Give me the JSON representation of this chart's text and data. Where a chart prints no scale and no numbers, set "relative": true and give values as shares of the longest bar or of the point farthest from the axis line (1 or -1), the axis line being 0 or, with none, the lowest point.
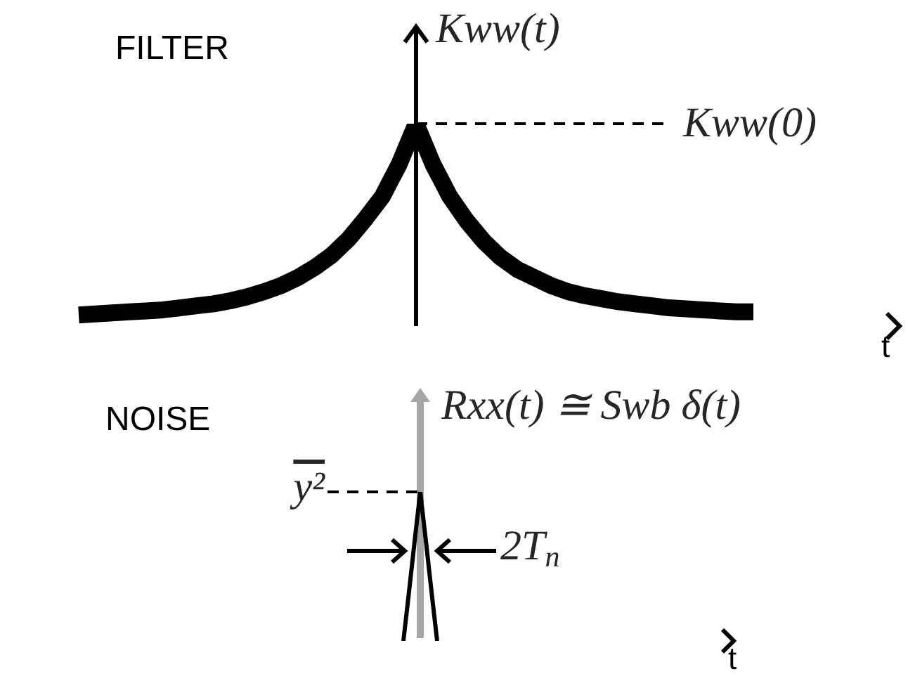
{
  "chart_data": [
    {
      "type": "line",
      "title": "FILTER",
      "xlabel": "t",
      "ylabel": "Kww(t)",
      "relative": true,
      "marker": "none",
      "categories": [
        null,
        null,
        null,
        null,
        null,
        null,
        null,
        null,
        null,
        null,
        null,
        null,
        null,
        null,
        null,
        null,
        null,
        null,
        null,
        null,
        null,
        null,
        null,
        null,
        null,
        null,
        null,
        null,
        null,
        null,
        null,
        null,
        null,
        null,
        null,
        null,
        null,
        null,
        null,
        null,
        null,
        null,
        null,
        null,
        null,
        null,
        null,
        null,
        null,
        null,
        null,
        null,
        null
      ],
      "series": [
        {
          "color": "#000000",
          "values": [
            null,
            null,
            null,
            null,
            0.055,
            0.06,
            0.065,
            0.07,
            0.075,
            0.08,
            0.09,
            0.1,
            0.11,
            0.125,
            0.145,
            0.17,
            0.2,
            0.24,
            0.29,
            0.35,
            0.43,
            0.53,
            0.64,
            0.8,
            1,
            0.8,
            0.64,
            0.52,
            0.42,
            0.34,
            0.28,
            0.24,
            0.2,
            0.17,
            0.15,
            0.135,
            0.12,
            0.11,
            0.1,
            0.09,
            0.085,
            0.08,
            0.075,
            0.07,
            0.07,
            null,
            null,
            null,
            null,
            null,
            null,
            null,
            null
          ]
        }
      ],
      "ref_lines": [
        {
          "axis": "y",
          "value": 1,
          "label": "Kww(0)",
          "line_style": "dashed",
          "color": "#000000"
        }
      ]
    },
    {
      "type": "line",
      "title": "NOISE",
      "xlabel": "t",
      "ylabel": "Rxx(t) ≅ Swb δ(t)",
      "relative": true,
      "marker": "none",
      "categories": [
        null,
        null,
        null,
        null,
        null,
        null,
        null,
        null,
        null,
        null,
        null,
        null,
        null,
        null,
        null,
        null,
        null,
        null,
        null,
        null,
        null,
        null,
        null,
        null,
        null,
        null,
        null,
        null,
        null,
        null,
        null,
        null,
        null,
        null,
        null,
        null,
        null,
        null,
        null,
        null,
        null,
        null,
        null,
        null,
        null,
        null,
        null,
        null,
        null,
        null,
        null,
        null,
        null,
        null,
        null,
        null,
        null,
        null,
        null,
        null,
        null,
        null,
        null,
        null,
        null,
        null,
        null,
        null,
        null,
        null,
        null,
        null,
        null,
        null,
        null,
        null,
        null,
        null,
        null,
        null,
        null,
        null,
        null,
        null,
        null,
        null,
        null,
        null,
        null,
        null,
        null,
        null,
        null,
        null,
        null,
        null,
        null,
        null,
        null,
        null,
        null,
        null,
        null
      ],
      "series": [
        {
          "color": "#000000",
          "values": [
            null,
            null,
            null,
            null,
            null,
            null,
            null,
            null,
            null,
            null,
            null,
            null,
            null,
            null,
            null,
            null,
            null,
            null,
            null,
            null,
            null,
            null,
            null,
            null,
            null,
            null,
            null,
            null,
            null,
            null,
            null,
            null,
            null,
            null,
            null,
            null,
            null,
            null,
            null,
            null,
            null,
            null,
            null,
            null,
            null,
            0,
            0.33,
            0.67,
            1,
            0.67,
            0.33,
            0,
            null,
            null,
            null,
            null,
            null,
            null,
            null,
            null,
            null,
            null,
            null,
            null,
            null,
            null,
            null,
            null,
            null,
            null,
            null,
            null,
            null,
            null,
            null,
            null,
            null,
            null,
            null,
            null,
            null,
            null,
            null,
            null,
            null,
            null,
            null,
            null,
            null,
            null,
            null,
            null,
            null,
            null,
            null,
            null,
            null,
            null,
            null,
            null,
            null,
            null,
            null
          ]
        }
      ],
      "ref_lines": [
        {
          "axis": "y",
          "value": 1,
          "label": "y²",
          "line_style": "dashed",
          "color": "#000000"
        }
      ],
      "annotations": [
        "2T$_{n}$"
      ]
    }
  ]
}
